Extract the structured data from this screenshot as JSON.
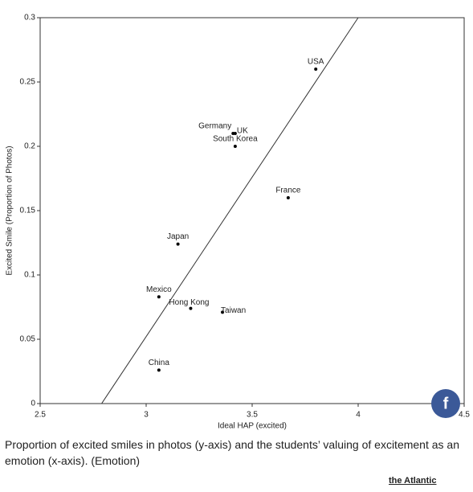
{
  "chart_data": {
    "type": "scatter",
    "x_label": "Ideal HAP (excited)",
    "y_label": "Excited Smile (Proportion of Photos)",
    "point_labels": [
      "USA",
      "Germany",
      "UK",
      "South Korea",
      "France",
      "Japan",
      "Mexico",
      "Hong Kong",
      "Taiwan",
      "China"
    ],
    "x": [
      3.8,
      3.41,
      3.42,
      3.42,
      3.67,
      3.15,
      3.06,
      3.21,
      3.36,
      3.06
    ],
    "values": [
      0.26,
      0.21,
      0.21,
      0.2,
      0.16,
      0.124,
      0.083,
      0.074,
      0.071,
      0.026
    ],
    "color": "#000000",
    "fit_line": {
      "x": [
        2.79,
        4.0
      ],
      "y": [
        0,
        0.3
      ],
      "color": "#333333"
    },
    "xlim": [
      2.5,
      4.5
    ],
    "xticks": [
      2.5,
      3,
      3.5,
      4,
      4.5
    ],
    "ylim": [
      0,
      0.3
    ],
    "yticks": [
      0,
      0.05,
      0.1,
      0.15,
      0.2,
      0.25,
      0.3
    ]
  },
  "caption": "Proportion of excited smiles in photos (y-axis) and the students’ valuing of excitement as an emotion (x-axis). (Emotion)",
  "source": "the Atlantic",
  "share_icon": "f"
}
